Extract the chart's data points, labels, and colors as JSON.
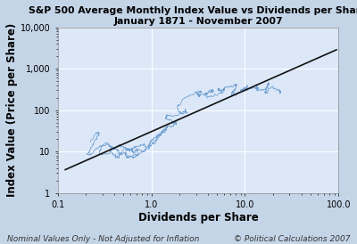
{
  "title_line1": "S&P 500 Average Monthly Index Value vs Dividends per Share",
  "title_line2": "January 1871 - November 2007",
  "xlabel": "Dividends per Share",
  "ylabel": "Index Value (Price per Share)",
  "footnote_left": "Nominal Values Only - Not Adjusted for Inflation",
  "footnote_right": "© Political Calculations 2007",
  "xlim": [
    0.1,
    100.0
  ],
  "ylim": [
    1.0,
    10000.0
  ],
  "background_color": "#dce8f8",
  "outer_color": "#c5d5e8",
  "line_color": "#6699cc",
  "trendline_color": "#111111",
  "grid_color": "#ffffff",
  "title_fontsize": 7.8,
  "axis_label_fontsize": 8.5,
  "footnote_fontsize": 6.5,
  "tick_fontsize": 7,
  "trendline_slope": 1.0,
  "trendline_intercept_log": 1.48,
  "div_start": 0.22,
  "div_end": 27.0,
  "n_points": 1643
}
